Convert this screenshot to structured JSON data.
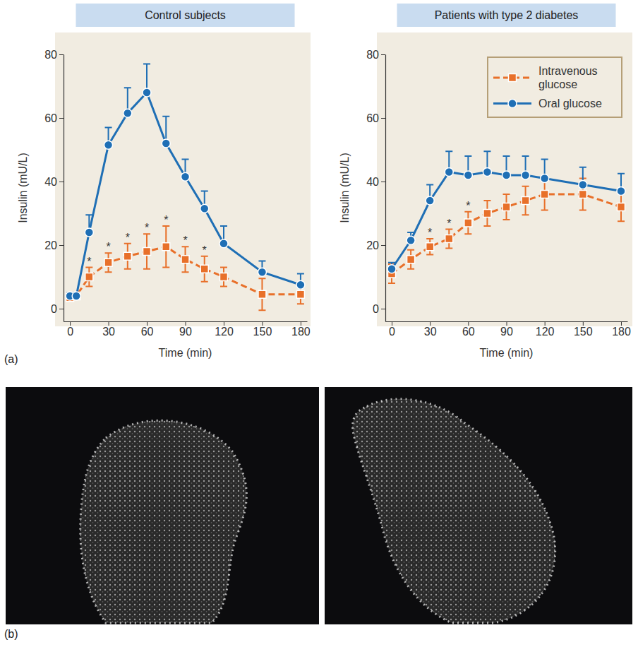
{
  "figure": {
    "panel_labels": [
      "(a)",
      "(b)"
    ]
  },
  "chart_data": [
    {
      "type": "line",
      "title": "Control subjects",
      "x_label": "Time (min)",
      "y_label": "Insulin (mU/L)",
      "x": [
        0,
        5,
        15,
        30,
        45,
        60,
        75,
        90,
        105,
        120,
        150,
        180
      ],
      "xlim": [
        -5,
        185
      ],
      "xticks": [
        0,
        30,
        60,
        90,
        120,
        150,
        180
      ],
      "ylim": [
        -4,
        80
      ],
      "yticks": [
        0,
        20,
        40,
        60,
        80
      ],
      "series": [
        {
          "color": "#e8702a",
          "marker": "square",
          "line_style": "dashed",
          "values": [
            3.5,
            4,
            10,
            14.5,
            16.5,
            18,
            19.5,
            15.5,
            12.5,
            10,
            4.5,
            4.5
          ],
          "errors": [
            1,
            1,
            3,
            3,
            4,
            5.5,
            6.5,
            4,
            4,
            3,
            5,
            3
          ],
          "significance": [
            null,
            null,
            "*",
            "*",
            "*",
            "*",
            "*",
            "*",
            "*",
            null,
            null,
            null
          ]
        },
        {
          "color": "#1f6fb5",
          "marker": "circle",
          "line_style": "solid",
          "values": [
            4,
            4,
            24,
            51.5,
            61.5,
            68,
            52,
            41.5,
            31.5,
            20.5,
            11.5,
            7.5
          ],
          "errors_up": [
            1,
            1,
            5.5,
            5.5,
            8,
            9,
            8.5,
            5.5,
            5.5,
            5.5,
            3.5,
            3.5
          ]
        }
      ]
    },
    {
      "type": "line",
      "title": "Patients with type 2 diabetes",
      "x_label": "Time (min)",
      "y_label": "Insulin (mU/L)",
      "x": [
        0,
        15,
        30,
        45,
        60,
        75,
        90,
        105,
        120,
        150,
        180
      ],
      "xlim": [
        -5,
        185
      ],
      "xticks": [
        0,
        30,
        60,
        90,
        120,
        150,
        180
      ],
      "ylim": [
        -4,
        80
      ],
      "yticks": [
        0,
        20,
        40,
        60,
        80
      ],
      "legend": "upper right",
      "series": [
        {
          "name": "Intravenous glucose",
          "color": "#e8702a",
          "marker": "square",
          "line_style": "dashed",
          "values": [
            11,
            15.5,
            19.5,
            22,
            27,
            30,
            32,
            34,
            36,
            36,
            32
          ],
          "errors": [
            3,
            3,
            2.5,
            3,
            3.5,
            4,
            4,
            4.5,
            5,
            5,
            4.5
          ],
          "significance": [
            null,
            null,
            "*",
            "*",
            "*",
            null,
            null,
            null,
            null,
            null,
            null
          ]
        },
        {
          "name": "Oral glucose",
          "color": "#1f6fb5",
          "marker": "circle",
          "line_style": "solid",
          "values": [
            12.5,
            21.5,
            34,
            43,
            42,
            43,
            42,
            42,
            41,
            39,
            37
          ],
          "errors_up": [
            2,
            2.5,
            5,
            6.5,
            6,
            6.5,
            6,
            6,
            6,
            5.5,
            5.5
          ]
        }
      ]
    }
  ]
}
